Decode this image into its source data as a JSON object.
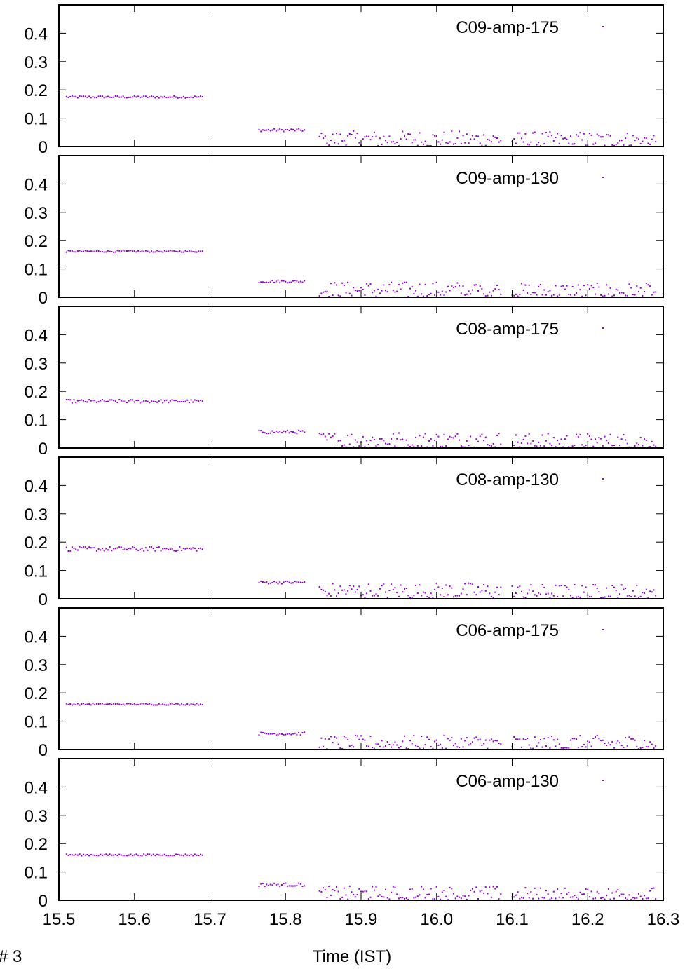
{
  "figure": {
    "corner_label": "# 3",
    "xlabel": "Time (IST)"
  },
  "chart_data": [
    {
      "type": "scatter",
      "legend": "C09-amp-175",
      "color": "#9400d3",
      "xlim": [
        15.5,
        16.3
      ],
      "ylim": [
        0,
        0.5
      ],
      "xticks": [
        "15.5",
        "15.6",
        "15.7",
        "15.8",
        "15.9",
        "16.0",
        "16.1",
        "16.2",
        "16.3"
      ],
      "yticks": [
        "0",
        "0.1",
        "0.2",
        "0.3",
        "0.4"
      ],
      "segments": [
        {
          "x_start": 15.51,
          "x_end": 15.69,
          "y_mean": 0.175,
          "y_spread": 0.004
        },
        {
          "x_start": 15.765,
          "x_end": 15.825,
          "y_mean": 0.058,
          "y_spread": 0.005
        },
        {
          "x_start": 15.845,
          "x_end": 16.085,
          "y_mean": 0.025,
          "y_spread": 0.03
        },
        {
          "x_start": 16.1,
          "x_end": 16.29,
          "y_mean": 0.022,
          "y_spread": 0.03
        }
      ]
    },
    {
      "type": "scatter",
      "legend": "C09-amp-130",
      "color": "#9400d3",
      "xlim": [
        15.5,
        16.3
      ],
      "ylim": [
        0,
        0.5
      ],
      "xticks": [
        "15.5",
        "15.6",
        "15.7",
        "15.8",
        "15.9",
        "16.0",
        "16.1",
        "16.2",
        "16.3"
      ],
      "yticks": [
        "0",
        "0.1",
        "0.2",
        "0.3",
        "0.4"
      ],
      "segments": [
        {
          "x_start": 15.51,
          "x_end": 15.69,
          "y_mean": 0.162,
          "y_spread": 0.003
        },
        {
          "x_start": 15.765,
          "x_end": 15.825,
          "y_mean": 0.056,
          "y_spread": 0.005
        },
        {
          "x_start": 15.845,
          "x_end": 16.085,
          "y_mean": 0.025,
          "y_spread": 0.03
        },
        {
          "x_start": 16.1,
          "x_end": 16.29,
          "y_mean": 0.02,
          "y_spread": 0.03
        }
      ]
    },
    {
      "type": "scatter",
      "legend": "C08-amp-175",
      "color": "#9400d3",
      "xlim": [
        15.5,
        16.3
      ],
      "ylim": [
        0,
        0.5
      ],
      "xticks": [
        "15.5",
        "15.6",
        "15.7",
        "15.8",
        "15.9",
        "16.0",
        "16.1",
        "16.2",
        "16.3"
      ],
      "yticks": [
        "0",
        "0.1",
        "0.2",
        "0.3",
        "0.4"
      ],
      "segments": [
        {
          "x_start": 15.51,
          "x_end": 15.69,
          "y_mean": 0.165,
          "y_spread": 0.006
        },
        {
          "x_start": 15.765,
          "x_end": 15.825,
          "y_mean": 0.057,
          "y_spread": 0.006
        },
        {
          "x_start": 15.845,
          "x_end": 16.085,
          "y_mean": 0.027,
          "y_spread": 0.03
        },
        {
          "x_start": 16.1,
          "x_end": 16.29,
          "y_mean": 0.022,
          "y_spread": 0.03
        }
      ]
    },
    {
      "type": "scatter",
      "legend": "C08-amp-130",
      "color": "#9400d3",
      "xlim": [
        15.5,
        16.3
      ],
      "ylim": [
        0,
        0.5
      ],
      "xticks": [
        "15.5",
        "15.6",
        "15.7",
        "15.8",
        "15.9",
        "16.0",
        "16.1",
        "16.2",
        "16.3"
      ],
      "yticks": [
        "0",
        "0.1",
        "0.2",
        "0.3",
        "0.4"
      ],
      "segments": [
        {
          "x_start": 15.51,
          "x_end": 15.69,
          "y_mean": 0.176,
          "y_spread": 0.008
        },
        {
          "x_start": 15.765,
          "x_end": 15.825,
          "y_mean": 0.058,
          "y_spread": 0.005
        },
        {
          "x_start": 15.845,
          "x_end": 16.085,
          "y_mean": 0.027,
          "y_spread": 0.03
        },
        {
          "x_start": 16.1,
          "x_end": 16.29,
          "y_mean": 0.022,
          "y_spread": 0.03
        }
      ]
    },
    {
      "type": "scatter",
      "legend": "C06-amp-175",
      "color": "#9400d3",
      "xlim": [
        15.5,
        16.3
      ],
      "ylim": [
        0,
        0.5
      ],
      "xticks": [
        "15.5",
        "15.6",
        "15.7",
        "15.8",
        "15.9",
        "16.0",
        "16.1",
        "16.2",
        "16.3"
      ],
      "yticks": [
        "0",
        "0.1",
        "0.2",
        "0.3",
        "0.4"
      ],
      "segments": [
        {
          "x_start": 15.51,
          "x_end": 15.69,
          "y_mean": 0.16,
          "y_spread": 0.003
        },
        {
          "x_start": 15.765,
          "x_end": 15.825,
          "y_mean": 0.056,
          "y_spread": 0.005
        },
        {
          "x_start": 15.845,
          "x_end": 16.085,
          "y_mean": 0.022,
          "y_spread": 0.028
        },
        {
          "x_start": 16.1,
          "x_end": 16.29,
          "y_mean": 0.02,
          "y_spread": 0.03
        }
      ]
    },
    {
      "type": "scatter",
      "legend": "C06-amp-130",
      "color": "#9400d3",
      "xlim": [
        15.5,
        16.3
      ],
      "ylim": [
        0,
        0.5
      ],
      "xticks": [
        "15.5",
        "15.6",
        "15.7",
        "15.8",
        "15.9",
        "16.0",
        "16.1",
        "16.2",
        "16.3"
      ],
      "yticks": [
        "0",
        "0.1",
        "0.2",
        "0.3",
        "0.4"
      ],
      "segments": [
        {
          "x_start": 15.51,
          "x_end": 15.69,
          "y_mean": 0.16,
          "y_spread": 0.003
        },
        {
          "x_start": 15.765,
          "x_end": 15.825,
          "y_mean": 0.055,
          "y_spread": 0.006
        },
        {
          "x_start": 15.845,
          "x_end": 16.085,
          "y_mean": 0.022,
          "y_spread": 0.028
        },
        {
          "x_start": 16.1,
          "x_end": 16.29,
          "y_mean": 0.018,
          "y_spread": 0.028
        }
      ]
    }
  ]
}
